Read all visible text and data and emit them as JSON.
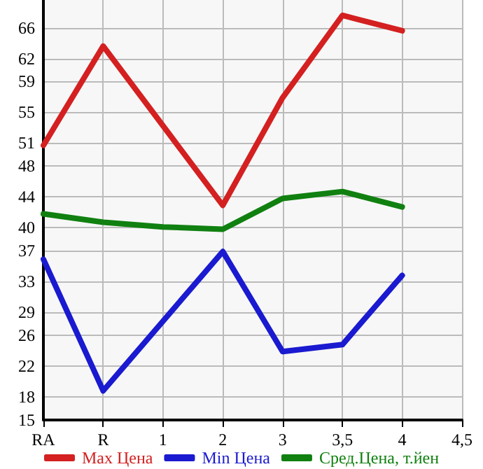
{
  "chart_data": {
    "type": "line",
    "categories": [
      "RA",
      "R",
      "1",
      "2",
      "3",
      "3,5",
      "4",
      "4,5"
    ],
    "series": [
      {
        "name": "Max Цена",
        "color": "#d42020",
        "values": [
          50.7,
          63.6,
          null,
          42.9,
          56.9,
          67.6,
          65.6,
          null
        ]
      },
      {
        "name": "Min Цена",
        "color": "#1a1ad0",
        "values": [
          35.9,
          18.8,
          null,
          36.9,
          23.9,
          24.8,
          33.8,
          null
        ]
      },
      {
        "name": "Сред.Цена, т.йен",
        "color": "#108010",
        "values": [
          41.8,
          40.7,
          40.1,
          39.8,
          43.8,
          44.7,
          42.7,
          null
        ]
      }
    ],
    "ylim": [
      15,
      69.6
    ],
    "yticks": [
      15,
      18,
      22,
      26,
      29,
      33,
      37,
      40,
      44,
      48,
      51,
      55,
      59,
      62,
      66
    ],
    "grid": true,
    "legend": "bottom",
    "marker": "none",
    "line_style": "solid"
  }
}
